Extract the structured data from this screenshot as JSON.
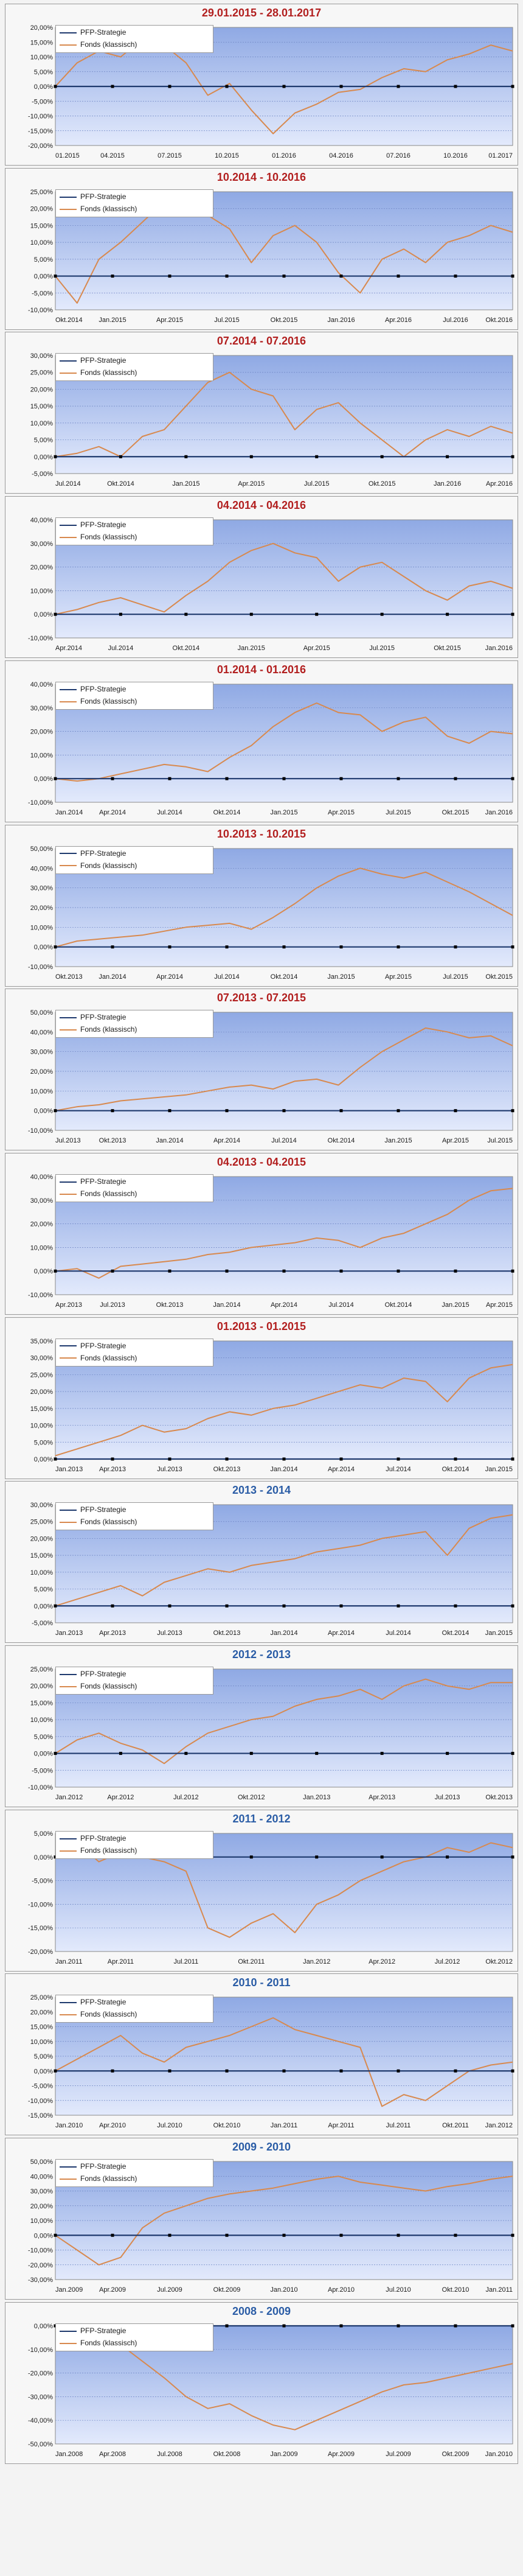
{
  "legend": {
    "strategy": "PFP-Strategie",
    "fund": "Fonds (klassisch)"
  },
  "colors": {
    "strategy": "#1f3a6e",
    "fund": "#d8894e",
    "title_red": "#b21f1f",
    "title_blue": "#2b5da6",
    "plot_top": "#8fa9e4",
    "plot_bottom": "#e3eafc"
  },
  "chart_data": [
    {
      "type": "line",
      "title": "29.01.2015 - 28.01.2017",
      "title_color": "red",
      "yticks": [
        "20,00%",
        "15,00%",
        "10,00%",
        "5,00%",
        "0,00%",
        "-5,00%",
        "-10,00%",
        "-15,00%",
        "-20,00%"
      ],
      "ylim": [
        -20,
        20
      ],
      "ystep": 5,
      "xticks": [
        "01.2015",
        "04.2015",
        "07.2015",
        "10.2015",
        "01.2016",
        "04.2016",
        "07.2016",
        "10.2016",
        "01.2017"
      ],
      "series": [
        {
          "name": "PFP-Strategie",
          "values": [
            0,
            0
          ]
        },
        {
          "name": "Fonds (klassisch)",
          "values": [
            0,
            8,
            12,
            10,
            16,
            14,
            8,
            -3,
            1,
            -8,
            -16,
            -9,
            -6,
            -2,
            -1,
            3,
            6,
            5,
            9,
            11,
            14,
            12
          ]
        }
      ]
    },
    {
      "type": "line",
      "title": "10.2014 - 10.2016",
      "title_color": "red",
      "yticks": [
        "25,00%",
        "20,00%",
        "15,00%",
        "10,00%",
        "5,00%",
        "0,00%",
        "-5,00%",
        "-10,00%"
      ],
      "ylim": [
        -10,
        25
      ],
      "ystep": 5,
      "xticks": [
        "Okt.2014",
        "Jan.2015",
        "Apr.2015",
        "Jul.2015",
        "Okt.2015",
        "Jan.2016",
        "Apr.2016",
        "Jul.2016",
        "Okt.2016"
      ],
      "series": [
        {
          "name": "PFP-Strategie",
          "values": [
            0,
            0
          ]
        },
        {
          "name": "Fonds (klassisch)",
          "values": [
            0,
            -8,
            5,
            10,
            16,
            22,
            20,
            18,
            14,
            4,
            12,
            15,
            10,
            1,
            -5,
            5,
            8,
            4,
            10,
            12,
            15,
            13
          ]
        }
      ]
    },
    {
      "type": "line",
      "title": "07.2014 - 07.2016",
      "title_color": "red",
      "yticks": [
        "30,00%",
        "25,00%",
        "20,00%",
        "15,00%",
        "10,00%",
        "5,00%",
        "0,00%",
        "-5,00%"
      ],
      "ylim": [
        -5,
        30
      ],
      "ystep": 5,
      "xticks": [
        "Jul.2014",
        "Okt.2014",
        "Jan.2015",
        "Apr.2015",
        "Jul.2015",
        "Okt.2015",
        "Jan.2016",
        "Apr.2016"
      ],
      "series": [
        {
          "name": "PFP-Strategie",
          "values": [
            0,
            0
          ]
        },
        {
          "name": "Fonds (klassisch)",
          "values": [
            0,
            1,
            3,
            0,
            6,
            8,
            15,
            22,
            25,
            20,
            18,
            8,
            14,
            16,
            10,
            5,
            0,
            5,
            8,
            6,
            9,
            7
          ]
        }
      ]
    },
    {
      "type": "line",
      "title": "04.2014 - 04.2016",
      "title_color": "red",
      "yticks": [
        "40,00%",
        "30,00%",
        "20,00%",
        "10,00%",
        "0,00%",
        "-10,00%"
      ],
      "ylim": [
        -10,
        40
      ],
      "ystep": 10,
      "xticks": [
        "Apr.2014",
        "Jul.2014",
        "Okt.2014",
        "Jan.2015",
        "Apr.2015",
        "Jul.2015",
        "Okt.2015",
        "Jan.2016"
      ],
      "series": [
        {
          "name": "PFP-Strategie",
          "values": [
            0,
            0
          ]
        },
        {
          "name": "Fonds (klassisch)",
          "values": [
            0,
            2,
            5,
            7,
            4,
            1,
            8,
            14,
            22,
            27,
            30,
            26,
            24,
            14,
            20,
            22,
            16,
            10,
            6,
            12,
            14,
            11
          ]
        }
      ]
    },
    {
      "type": "line",
      "title": "01.2014 - 01.2016",
      "title_color": "red",
      "yticks": [
        "40,00%",
        "30,00%",
        "20,00%",
        "10,00%",
        "0,00%",
        "-10,00%"
      ],
      "ylim": [
        -10,
        40
      ],
      "ystep": 10,
      "xticks": [
        "Jan.2014",
        "Apr.2014",
        "Jul.2014",
        "Okt.2014",
        "Jan.2015",
        "Apr.2015",
        "Jul.2015",
        "Okt.2015",
        "Jan.2016"
      ],
      "series": [
        {
          "name": "PFP-Strategie",
          "values": [
            0,
            0
          ]
        },
        {
          "name": "Fonds (klassisch)",
          "values": [
            0,
            -1,
            0,
            2,
            4,
            6,
            5,
            3,
            9,
            14,
            22,
            28,
            32,
            28,
            27,
            20,
            24,
            26,
            18,
            15,
            20,
            19
          ]
        }
      ]
    },
    {
      "type": "line",
      "title": "10.2013 - 10.2015",
      "title_color": "red",
      "yticks": [
        "50,00%",
        "40,00%",
        "30,00%",
        "20,00%",
        "10,00%",
        "0,00%",
        "-10,00%"
      ],
      "ylim": [
        -10,
        50
      ],
      "ystep": 10,
      "xticks": [
        "Okt.2013",
        "Jan.2014",
        "Apr.2014",
        "Jul.2014",
        "Okt.2014",
        "Jan.2015",
        "Apr.2015",
        "Jul.2015",
        "Okt.2015"
      ],
      "series": [
        {
          "name": "PFP-Strategie",
          "values": [
            0,
            0
          ]
        },
        {
          "name": "Fonds (klassisch)",
          "values": [
            0,
            3,
            4,
            5,
            6,
            8,
            10,
            11,
            12,
            9,
            15,
            22,
            30,
            36,
            40,
            37,
            35,
            38,
            33,
            28,
            22,
            16
          ]
        }
      ]
    },
    {
      "type": "line",
      "title": "07.2013 - 07.2015",
      "title_color": "red",
      "yticks": [
        "50,00%",
        "40,00%",
        "30,00%",
        "20,00%",
        "10,00%",
        "0,00%",
        "-10,00%"
      ],
      "ylim": [
        -10,
        50
      ],
      "ystep": 10,
      "xticks": [
        "Jul.2013",
        "Okt.2013",
        "Jan.2014",
        "Apr.2014",
        "Jul.2014",
        "Okt.2014",
        "Jan.2015",
        "Apr.2015",
        "Jul.2015"
      ],
      "series": [
        {
          "name": "PFP-Strategie",
          "values": [
            0,
            0
          ]
        },
        {
          "name": "Fonds (klassisch)",
          "values": [
            0,
            2,
            3,
            5,
            6,
            7,
            8,
            10,
            12,
            13,
            11,
            15,
            16,
            13,
            22,
            30,
            36,
            42,
            40,
            37,
            38,
            33
          ]
        }
      ]
    },
    {
      "type": "line",
      "title": "04.2013 - 04.2015",
      "title_color": "red",
      "yticks": [
        "40,00%",
        "30,00%",
        "20,00%",
        "10,00%",
        "0,00%",
        "-10,00%"
      ],
      "ylim": [
        -10,
        40
      ],
      "ystep": 10,
      "xticks": [
        "Apr.2013",
        "Jul.2013",
        "Okt.2013",
        "Jan.2014",
        "Apr.2014",
        "Jul.2014",
        "Okt.2014",
        "Jan.2015",
        "Apr.2015"
      ],
      "series": [
        {
          "name": "PFP-Strategie",
          "values": [
            0,
            0
          ]
        },
        {
          "name": "Fonds (klassisch)",
          "values": [
            0,
            1,
            -3,
            2,
            3,
            4,
            5,
            7,
            8,
            10,
            11,
            12,
            14,
            13,
            10,
            14,
            16,
            20,
            24,
            30,
            34,
            35
          ]
        }
      ]
    },
    {
      "type": "line",
      "title": "01.2013 - 01.2015",
      "title_color": "red",
      "yticks": [
        "35,00%",
        "30,00%",
        "25,00%",
        "20,00%",
        "15,00%",
        "10,00%",
        "5,00%",
        "0,00%"
      ],
      "ylim": [
        0,
        35
      ],
      "ystep": 5,
      "xticks": [
        "Jan.2013",
        "Apr.2013",
        "Jul.2013",
        "Okt.2013",
        "Jan.2014",
        "Apr.2014",
        "Jul.2014",
        "Okt.2014",
        "Jan.2015"
      ],
      "series": [
        {
          "name": "PFP-Strategie",
          "values": [
            0,
            0
          ]
        },
        {
          "name": "Fonds (klassisch)",
          "values": [
            1,
            3,
            5,
            7,
            10,
            8,
            9,
            12,
            14,
            13,
            15,
            16,
            18,
            20,
            22,
            21,
            24,
            23,
            17,
            24,
            27,
            28
          ]
        }
      ]
    },
    {
      "type": "line",
      "title": "2013 - 2014",
      "title_color": "blue",
      "yticks": [
        "30,00%",
        "25,00%",
        "20,00%",
        "15,00%",
        "10,00%",
        "5,00%",
        "0,00%",
        "-5,00%"
      ],
      "ylim": [
        -5,
        30
      ],
      "ystep": 5,
      "xticks": [
        "Jan.2013",
        "Apr.2013",
        "Jul.2013",
        "Okt.2013",
        "Jan.2014",
        "Apr.2014",
        "Jul.2014",
        "Okt.2014",
        "Jan.2015"
      ],
      "series": [
        {
          "name": "PFP-Strategie",
          "values": [
            0,
            0
          ]
        },
        {
          "name": "Fonds (klassisch)",
          "values": [
            0,
            2,
            4,
            6,
            3,
            7,
            9,
            11,
            10,
            12,
            13,
            14,
            16,
            17,
            18,
            20,
            21,
            22,
            15,
            23,
            26,
            27
          ]
        }
      ]
    },
    {
      "type": "line",
      "title": "2012 - 2013",
      "title_color": "blue",
      "yticks": [
        "25,00%",
        "20,00%",
        "15,00%",
        "10,00%",
        "5,00%",
        "0,00%",
        "-5,00%",
        "-10,00%"
      ],
      "ylim": [
        -10,
        25
      ],
      "ystep": 5,
      "xticks": [
        "Jan.2012",
        "Apr.2012",
        "Jul.2012",
        "Okt.2012",
        "Jan.2013",
        "Apr.2013",
        "Jul.2013",
        "Okt.2013"
      ],
      "series": [
        {
          "name": "PFP-Strategie",
          "values": [
            0,
            0
          ]
        },
        {
          "name": "Fonds (klassisch)",
          "values": [
            0,
            4,
            6,
            3,
            1,
            -3,
            2,
            6,
            8,
            10,
            11,
            14,
            16,
            17,
            19,
            16,
            20,
            22,
            20,
            19,
            21,
            21
          ]
        }
      ]
    },
    {
      "type": "line",
      "title": "2011 - 2012",
      "title_color": "blue",
      "yticks": [
        "5,00%",
        "0,00%",
        "-5,00%",
        "-10,00%",
        "-15,00%",
        "-20,00%"
      ],
      "ylim": [
        -20,
        5
      ],
      "ystep": 5,
      "xticks": [
        "Jan.2011",
        "Apr.2011",
        "Jul.2011",
        "Okt.2011",
        "Jan.2012",
        "Apr.2012",
        "Jul.2012",
        "Okt.2012"
      ],
      "series": [
        {
          "name": "PFP-Strategie",
          "values": [
            0,
            0
          ]
        },
        {
          "name": "Fonds (klassisch)",
          "values": [
            0,
            3,
            -1,
            1,
            0,
            -1,
            -3,
            -15,
            -17,
            -14,
            -12,
            -16,
            -10,
            -8,
            -5,
            -3,
            -1,
            0,
            2,
            1,
            3,
            2
          ]
        }
      ]
    },
    {
      "type": "line",
      "title": "2010 - 2011",
      "title_color": "blue",
      "yticks": [
        "25,00%",
        "20,00%",
        "15,00%",
        "10,00%",
        "5,00%",
        "0,00%",
        "-5,00%",
        "-10,00%",
        "-15,00%"
      ],
      "ylim": [
        -15,
        25
      ],
      "ystep": 5,
      "xticks": [
        "Jan.2010",
        "Apr.2010",
        "Jul.2010",
        "Okt.2010",
        "Jan.2011",
        "Apr.2011",
        "Jul.2011",
        "Okt.2011",
        "Jan.2012"
      ],
      "series": [
        {
          "name": "PFP-Strategie",
          "values": [
            0,
            0
          ]
        },
        {
          "name": "Fonds (klassisch)",
          "values": [
            0,
            4,
            8,
            12,
            6,
            3,
            8,
            10,
            12,
            15,
            18,
            14,
            12,
            10,
            8,
            -12,
            -8,
            -10,
            -5,
            0,
            2,
            3
          ]
        }
      ]
    },
    {
      "type": "line",
      "title": "2009 - 2010",
      "title_color": "blue",
      "yticks": [
        "50,00%",
        "40,00%",
        "30,00%",
        "20,00%",
        "10,00%",
        "0,00%",
        "-10,00%",
        "-20,00%",
        "-30,00%"
      ],
      "ylim": [
        -30,
        50
      ],
      "ystep": 10,
      "xticks": [
        "Jan.2009",
        "Apr.2009",
        "Jul.2009",
        "Okt.2009",
        "Jan.2010",
        "Apr.2010",
        "Jul.2010",
        "Okt.2010",
        "Jan.2011"
      ],
      "series": [
        {
          "name": "PFP-Strategie",
          "values": [
            0,
            0
          ]
        },
        {
          "name": "Fonds (klassisch)",
          "values": [
            0,
            -10,
            -20,
            -15,
            5,
            15,
            20,
            25,
            28,
            30,
            32,
            35,
            38,
            40,
            36,
            34,
            32,
            30,
            33,
            35,
            38,
            40
          ]
        }
      ]
    },
    {
      "type": "line",
      "title": "2008 - 2009",
      "title_color": "blue",
      "yticks": [
        "0,00%",
        "-10,00%",
        "-20,00%",
        "-30,00%",
        "-40,00%",
        "-50,00%"
      ],
      "ylim": [
        -50,
        0
      ],
      "ystep": 10,
      "xticks": [
        "Jan.2008",
        "Apr.2008",
        "Jul.2008",
        "Okt.2008",
        "Jan.2009",
        "Apr.2009",
        "Jul.2009",
        "Okt.2009",
        "Jan.2010"
      ],
      "series": [
        {
          "name": "PFP-Strategie",
          "values": [
            0,
            0
          ]
        },
        {
          "name": "Fonds (klassisch)",
          "values": [
            -2,
            -5,
            -3,
            -8,
            -15,
            -22,
            -30,
            -35,
            -33,
            -38,
            -42,
            -44,
            -40,
            -36,
            -32,
            -28,
            -25,
            -24,
            -22,
            -20,
            -18,
            -16
          ]
        }
      ]
    }
  ]
}
